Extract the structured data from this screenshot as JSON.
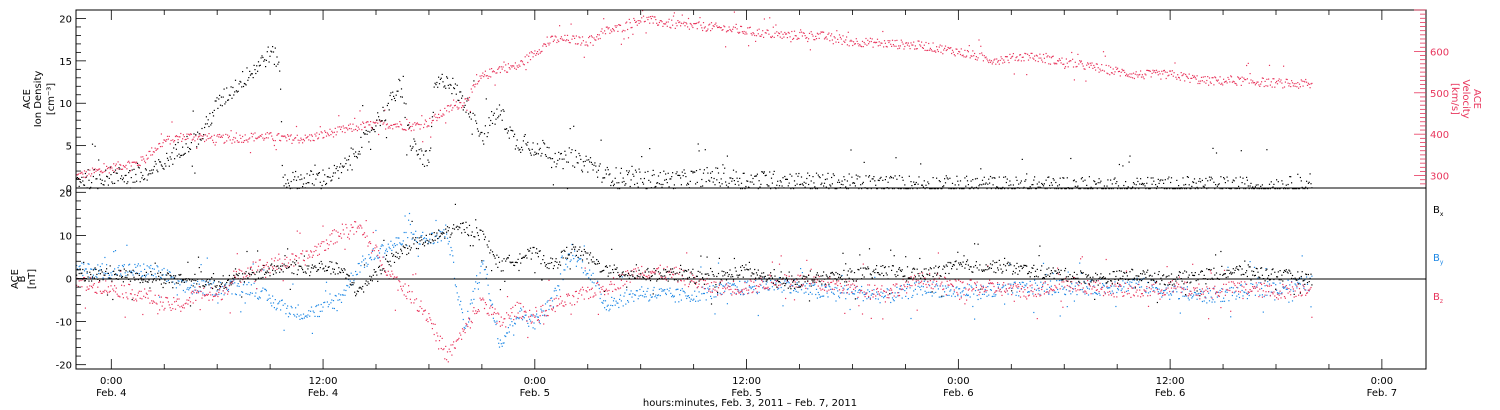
{
  "colors": {
    "black": "#000000",
    "red": "#e8365d",
    "blue": "#1e88e5",
    "frame": "#000000"
  },
  "chart_data": [
    {
      "type": "scatter",
      "panel": "top",
      "ylabel_left": [
        "ACE",
        "Ion Density",
        "[cm⁻³]"
      ],
      "ylabel_right": [
        "ACE",
        "Velocity",
        "[km/s]"
      ],
      "y_left_ticks": [
        "0",
        "5",
        "10",
        "15",
        "20"
      ],
      "y_left_lim": [
        0,
        21
      ],
      "y_right_ticks": [
        "300",
        "400",
        "500",
        "600"
      ],
      "y_right_lim": [
        270,
        700
      ],
      "x_hours_lim": [
        -2,
        74.5
      ],
      "series": [
        {
          "name": "Ion Density",
          "axis": "left",
          "color": "#000000",
          "x": [
            -2,
            0,
            2,
            2.7,
            3,
            4,
            5,
            6,
            7,
            8,
            9,
            9.5,
            9.7,
            10,
            11,
            12,
            13,
            14,
            14.5,
            15,
            15.5,
            16,
            16.3,
            16.8,
            17,
            17.5,
            18,
            18.3,
            19,
            20,
            20.5,
            21,
            21.5,
            22,
            22.5,
            23,
            23.5,
            24,
            24.5,
            25,
            25.5,
            26,
            26.5,
            27,
            28,
            30,
            32,
            34,
            36,
            38,
            40,
            42,
            44,
            46,
            48,
            50,
            52,
            54,
            56,
            58,
            60,
            62,
            64,
            66,
            67.5,
            68
          ],
          "y": [
            1,
            1.5,
            1.5,
            2.5,
            3,
            5,
            6,
            10,
            12,
            14,
            16,
            15,
            1,
            1,
            1,
            1.3,
            2,
            5,
            6,
            8,
            9,
            11,
            12,
            7,
            5,
            4,
            3,
            12,
            13,
            10,
            9,
            6,
            8,
            9,
            7,
            5,
            6,
            4,
            5,
            4,
            3,
            4,
            3,
            3,
            1.5,
            1.2,
            1,
            1.5,
            1,
            1,
            0.8,
            0.6,
            0.5,
            0.5,
            0.4,
            0.4,
            0.3,
            0.4,
            0.3,
            0.3,
            0.3,
            0.4,
            0.3,
            0.4,
            0.3,
            1
          ]
        },
        {
          "name": "Velocity",
          "axis": "right",
          "color": "#e8365d",
          "x": [
            -2,
            0,
            1,
            1.5,
            2,
            3,
            4,
            5,
            6,
            7,
            8,
            9,
            10,
            11,
            12,
            13,
            14,
            15,
            16,
            17,
            18,
            19,
            20,
            21,
            22,
            23,
            24,
            25,
            26,
            27,
            28,
            29,
            30,
            32,
            34,
            36,
            38,
            40,
            42,
            44,
            46,
            48,
            50,
            52,
            54,
            56,
            58,
            60,
            62,
            64,
            66,
            68
          ],
          "y": [
            300,
            320,
            330,
            330,
            350,
            385,
            395,
            395,
            390,
            390,
            395,
            395,
            390,
            390,
            400,
            410,
            420,
            425,
            425,
            420,
            430,
            460,
            480,
            540,
            560,
            565,
            600,
            630,
            630,
            625,
            650,
            660,
            680,
            665,
            660,
            650,
            640,
            640,
            625,
            620,
            615,
            600,
            580,
            590,
            575,
            560,
            545,
            545,
            530,
            530,
            525,
            520
          ]
        }
      ]
    },
    {
      "type": "scatter",
      "panel": "bottom",
      "ylabel_left": [
        "ACE",
        "B",
        "[nT]"
      ],
      "y_left_ticks": [
        "-20",
        "-10",
        "0",
        "10",
        "20"
      ],
      "y_left_lim": [
        -21,
        21
      ],
      "x_hours_lim": [
        -2,
        74.5
      ],
      "legend": [
        {
          "text": "B",
          "sub": "x",
          "color": "#000000"
        },
        {
          "text": "B",
          "sub": "y",
          "color": "#1e88e5"
        },
        {
          "text": "B",
          "sub": "z",
          "color": "#e8365d"
        }
      ],
      "legend_placement": "right",
      "series": [
        {
          "name": "Bx",
          "color": "#000000",
          "x": [
            -2,
            0,
            2,
            4,
            6,
            8,
            10,
            11,
            12,
            13,
            14,
            15,
            16,
            17,
            18,
            19,
            20,
            21,
            22,
            23,
            24,
            25,
            26,
            27,
            28,
            30,
            32,
            34,
            36,
            38,
            40,
            42,
            44,
            46,
            48,
            50,
            52,
            54,
            56,
            58,
            60,
            62,
            64,
            66,
            68
          ],
          "y": [
            1,
            1,
            0.5,
            0,
            -1,
            1,
            3,
            2,
            3,
            2,
            -3,
            2,
            5,
            8,
            9,
            11,
            12,
            10,
            3,
            5,
            6,
            3,
            7,
            5,
            2,
            1,
            1,
            0,
            2,
            -1,
            0,
            1,
            2,
            1,
            3,
            3,
            2,
            1,
            0,
            1,
            0,
            1,
            2,
            1,
            0
          ]
        },
        {
          "name": "By",
          "color": "#1e88e5",
          "x": [
            -2,
            0,
            2,
            3,
            4,
            6,
            8,
            9,
            10,
            11,
            12,
            13,
            14,
            15,
            16,
            17,
            18,
            19,
            20,
            21,
            22,
            23,
            24,
            25,
            26,
            27,
            28,
            30,
            32,
            34,
            36,
            38,
            40,
            42,
            44,
            46,
            48,
            50,
            52,
            54,
            56,
            58,
            60,
            62,
            64,
            66,
            68
          ],
          "y": [
            2,
            2,
            2,
            1,
            -2,
            -2,
            -2,
            -5,
            -7,
            -8,
            -7,
            -4,
            3,
            6,
            8,
            10,
            9,
            11,
            -12,
            5,
            -15,
            -8,
            -10,
            -5,
            6,
            2,
            -6,
            -3,
            -4,
            -3,
            -2,
            -1,
            -3,
            -3,
            -4,
            -2,
            -3,
            -3,
            -2,
            -2,
            -2,
            -1,
            -3,
            -4,
            -3,
            -2,
            -1
          ]
        },
        {
          "name": "Bz",
          "color": "#e8365d",
          "x": [
            -2,
            0,
            2,
            3,
            4,
            5,
            6,
            7,
            8,
            9,
            10,
            11,
            12,
            13,
            14,
            15,
            16,
            17,
            18,
            19,
            20,
            21,
            22,
            23,
            24,
            25,
            26,
            27,
            28,
            30,
            32,
            34,
            36,
            38,
            40,
            42,
            44,
            46,
            48,
            50,
            52,
            54,
            56,
            58,
            60,
            62,
            64,
            66,
            68
          ],
          "y": [
            -1,
            -2,
            -4,
            -6,
            -6,
            -3,
            -4,
            0,
            3,
            3,
            4,
            5,
            8,
            11,
            12,
            6,
            0,
            -4,
            -9,
            -18,
            -12,
            -5,
            -10,
            -7,
            -9,
            -6,
            -5,
            -3,
            -2,
            2,
            1,
            -2,
            -2,
            0,
            -1,
            -2,
            -3,
            0,
            -2,
            -2,
            -3,
            -1,
            -2,
            -3,
            -2,
            -3,
            -2,
            -3,
            -2
          ]
        }
      ]
    }
  ],
  "x_axis": {
    "tick_hours": [
      0,
      12,
      24,
      36,
      48,
      60,
      72
    ],
    "tick_times": [
      "0:00",
      "12:00",
      "0:00",
      "12:00",
      "0:00",
      "12:00",
      "0:00"
    ],
    "tick_dates": [
      "Feb. 4",
      "Feb. 4",
      "Feb. 5",
      "Feb. 5",
      "Feb. 6",
      "Feb. 6",
      "Feb. 7"
    ],
    "label": "hours:minutes, Feb.  3, 2011 – Feb.  7, 2011"
  }
}
